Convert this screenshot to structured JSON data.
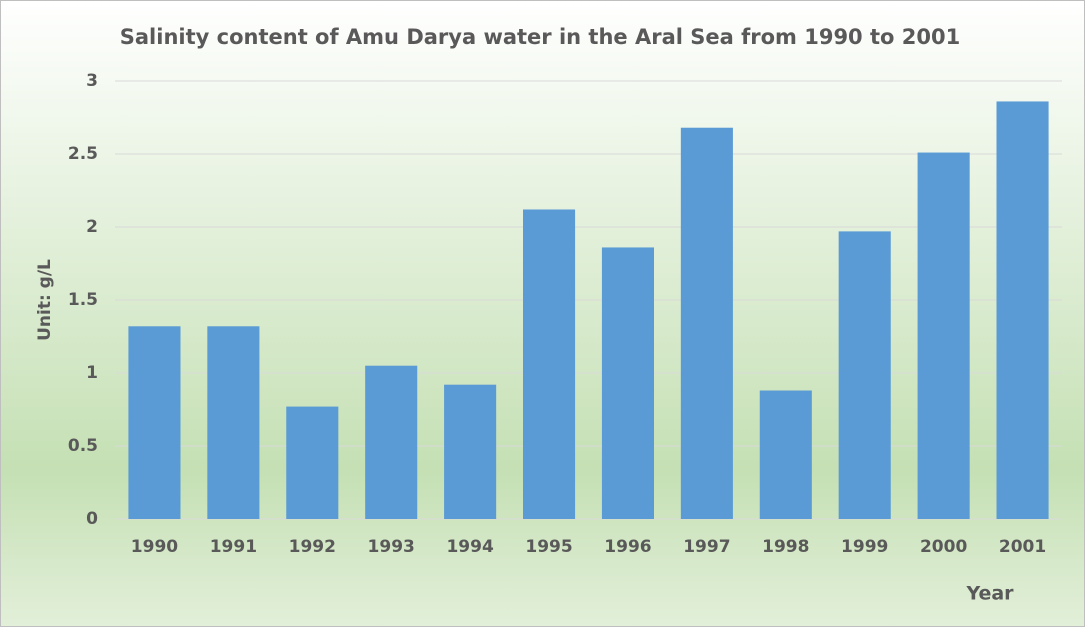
{
  "chart_data": {
    "type": "bar",
    "title": "Salinity content of Amu Darya water in the Aral Sea from 1990 to 2001",
    "y_label": "Unit:  g/L",
    "x_label": "Year",
    "categories": [
      "1990",
      "1991",
      "1992",
      "1993",
      "1994",
      "1995",
      "1996",
      "1997",
      "1998",
      "1999",
      "2000",
      "2001"
    ],
    "values": [
      1.32,
      1.32,
      0.77,
      1.05,
      0.92,
      2.12,
      1.86,
      2.68,
      0.88,
      1.97,
      2.51,
      2.86
    ],
    "color": "#5b9bd5",
    "ylim": [
      0,
      3
    ],
    "yticks": [
      0,
      0.5,
      1,
      1.5,
      2,
      2.5,
      3
    ],
    "grid": true
  }
}
